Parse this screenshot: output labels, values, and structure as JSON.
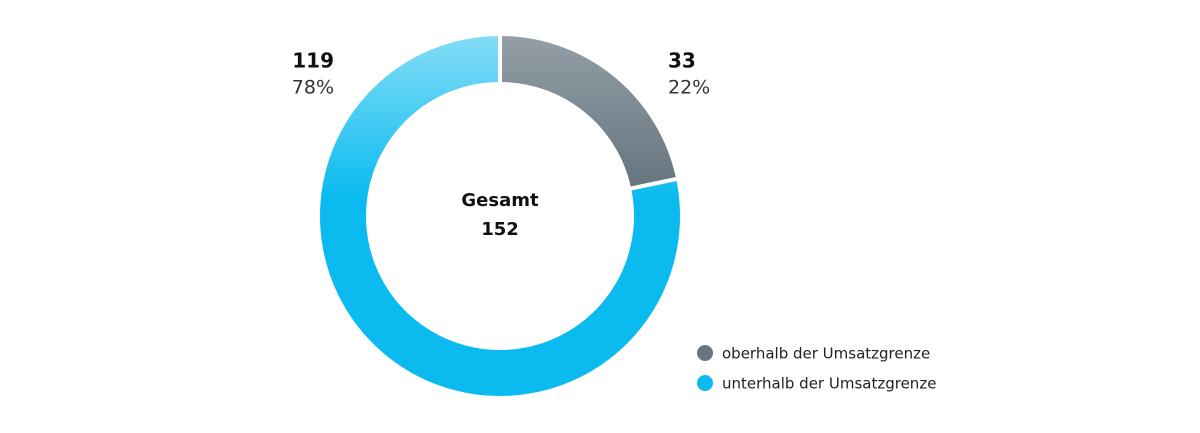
{
  "chart_data": {
    "type": "donut",
    "categories": [
      "oberhalb der Umsatzgrenze",
      "unterhalb der Umsatzgrenze"
    ],
    "values": [
      33,
      119
    ],
    "percentages": [
      22,
      78
    ],
    "percentage_labels": [
      "22%",
      "78%"
    ],
    "colors": [
      "#66757f",
      "#0bbbef"
    ],
    "total_label": "Gesamt",
    "total": 152
  }
}
